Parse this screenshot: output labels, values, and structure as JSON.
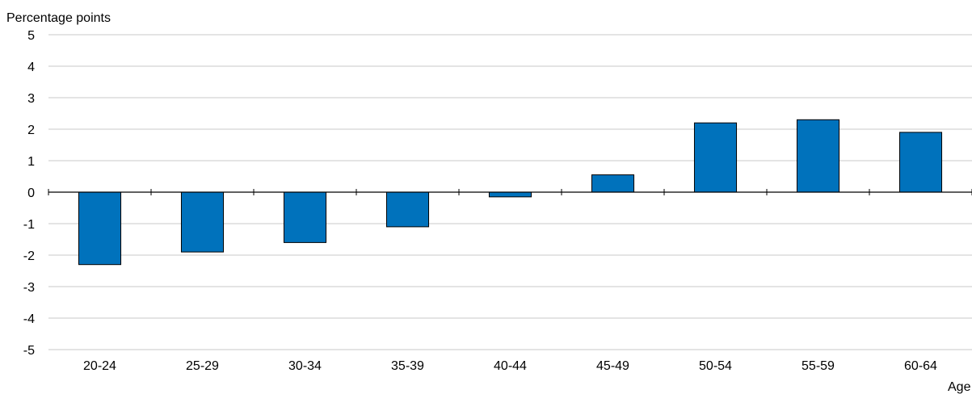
{
  "chart_data": {
    "type": "bar",
    "title": "",
    "ylabel": "Percentage points",
    "xlabel": "Age",
    "categories": [
      "20-24",
      "25-29",
      "30-34",
      "35-39",
      "40-44",
      "45-49",
      "50-54",
      "55-59",
      "60-64"
    ],
    "series": [
      {
        "values": [
          -2.3,
          -1.9,
          -1.6,
          -1.1,
          -0.15,
          0.55,
          2.2,
          2.3,
          1.9
        ]
      }
    ],
    "ylim": [
      -5,
      5
    ],
    "yticks": [
      5,
      4,
      3,
      2,
      1,
      0,
      -1,
      -2,
      -3,
      -4,
      -5
    ],
    "grid": true,
    "colors": {
      "bar": "#0072BC",
      "bar_edge": "#000000",
      "grid": "#C8C8C8",
      "axis": "#000000"
    }
  }
}
